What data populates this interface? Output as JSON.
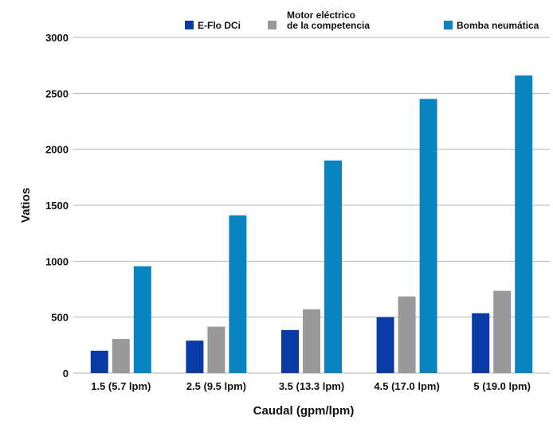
{
  "chart_data": {
    "type": "bar",
    "categories": [
      "1.5 (5.7 lpm)",
      "2.5 (9.5 lpm)",
      "3.5 (13.3 lpm)",
      "4.5 (17.0 lpm)",
      "5 (19.0 lpm)"
    ],
    "series": [
      {
        "name": "E-Flo DCi",
        "color": "#0a3aa6",
        "values": [
          200,
          290,
          385,
          500,
          535
        ]
      },
      {
        "name": "Motor eléctrico de la competencia",
        "name_lines": [
          "Motor eléctrico",
          "de la competencia"
        ],
        "color": "#999999",
        "values": [
          305,
          415,
          570,
          685,
          735
        ]
      },
      {
        "name": "Bomba neumática",
        "color": "#0a84c0",
        "values": [
          955,
          1410,
          1900,
          2450,
          2660
        ]
      }
    ],
    "title": "",
    "xlabel": "Caudal (gpm/lpm)",
    "ylabel": "Vatios",
    "ylim": [
      0,
      3000
    ],
    "yticks": [
      0,
      500,
      1000,
      1500,
      2000,
      2500,
      3000
    ],
    "grid": "horizontal",
    "legend": "top-right"
  }
}
